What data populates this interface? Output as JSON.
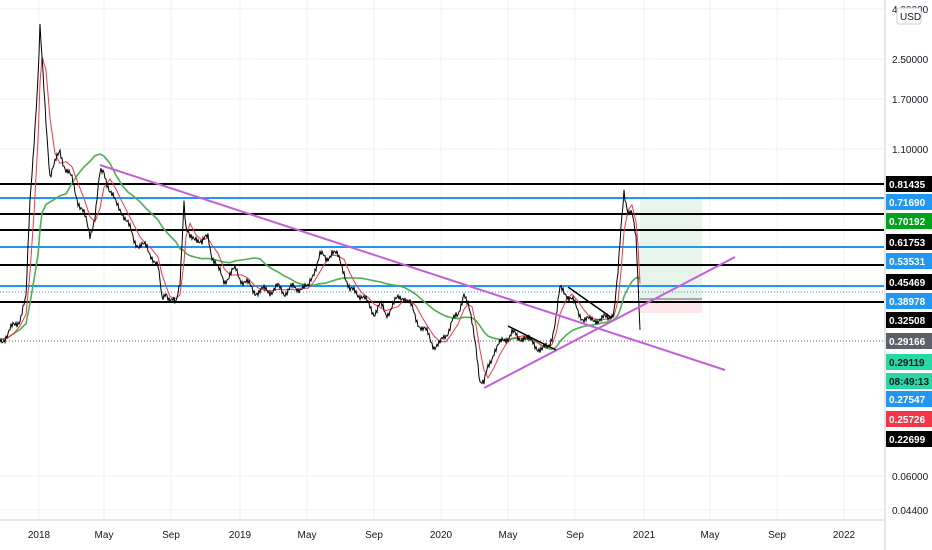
{
  "chart_data": {
    "type": "candlestick",
    "currency": "USD",
    "y_scale": "log",
    "y_axis_ticks": [
      "4.00000",
      "2.50000",
      "1.70000",
      "1.10000",
      "0.06000",
      "0.04400"
    ],
    "x_axis_ticks": [
      "2018",
      "May",
      "Sep",
      "2019",
      "May",
      "Sep",
      "2020",
      "May",
      "Sep",
      "2021",
      "May",
      "Sep",
      "2022"
    ],
    "grid": true,
    "colors": {
      "price_line": "#000000",
      "ema_fast": "#f23645",
      "ema_slow": "#4caf50",
      "trendline": "#c45ed9",
      "horizontal_black": "#000000",
      "horizontal_blue": "#2196f3",
      "target_zone": "#e6f4ea",
      "stop_zone": "#fde7ea"
    },
    "horizontal_levels": [
      {
        "value": "0.81435",
        "color": "#000000"
      },
      {
        "value": "0.71690",
        "color": "#2196f3"
      },
      {
        "value": "0.70192",
        "color": "#000000"
      },
      {
        "value": "0.61753",
        "color": "#000000"
      },
      {
        "value": "0.53531",
        "color": "#2196f3"
      },
      {
        "value": "0.45469",
        "color": "#000000"
      },
      {
        "value": "0.38978",
        "color": "#2196f3"
      },
      {
        "value": "0.32508",
        "color": "#000000"
      }
    ],
    "price_tags": [
      {
        "label": "0.81435",
        "bg": "#000000",
        "fg": "#ffffff"
      },
      {
        "label": "0.71690",
        "bg": "#2196f3",
        "fg": "#ffffff"
      },
      {
        "label": "0.70192",
        "bg": "#00a11b",
        "fg": "#ffffff"
      },
      {
        "label": "0.61753",
        "bg": "#000000",
        "fg": "#ffffff"
      },
      {
        "label": "0.53531",
        "bg": "#2196f3",
        "fg": "#ffffff"
      },
      {
        "label": "0.45469",
        "bg": "#000000",
        "fg": "#ffffff"
      },
      {
        "label": "0.38978",
        "bg": "#2196f3",
        "fg": "#ffffff"
      },
      {
        "label": "0.32508",
        "bg": "#000000",
        "fg": "#ffffff"
      },
      {
        "label": "0.29166",
        "bg": "#5d606b",
        "fg": "#ffffff"
      },
      {
        "label": "0.29119",
        "bg": "#26d8a4",
        "fg": "#131722"
      },
      {
        "label": "08:49:13",
        "bg": "#26d8a4",
        "fg": "#131722"
      },
      {
        "label": "0.27547",
        "bg": "#2196f3",
        "fg": "#ffffff"
      },
      {
        "label": "0.25726",
        "bg": "#f23645",
        "fg": "#ffffff"
      },
      {
        "label": "0.22699",
        "bg": "#000000",
        "fg": "#ffffff"
      }
    ]
  }
}
